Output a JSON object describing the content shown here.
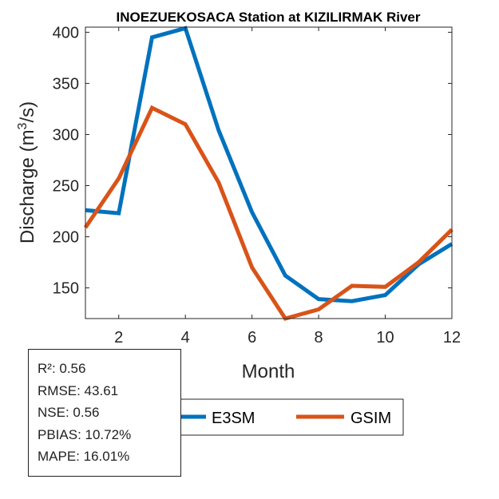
{
  "chart_data": {
    "type": "line",
    "title": "INOEZUEKOSACA  Station at  KIZILIRMAK  River",
    "xlabel": "Month",
    "ylabel_main": "Discharge (m",
    "ylabel_sup": "3",
    "ylabel_tail": "/s)",
    "xlim": [
      1,
      12
    ],
    "ylim": [
      120,
      405
    ],
    "xticks": [
      2,
      4,
      6,
      8,
      10,
      12
    ],
    "yticks": [
      150,
      200,
      250,
      300,
      350,
      400
    ],
    "grid": false,
    "legend_position": "bottom-outside",
    "x": [
      1,
      2,
      3,
      4,
      5,
      6,
      7,
      8,
      9,
      10,
      11,
      12
    ],
    "series": [
      {
        "name": "E3SM",
        "color": "#0072BD",
        "values": [
          226,
          223,
          395,
          404,
          304,
          224,
          162,
          139,
          137,
          143,
          173,
          193
        ]
      },
      {
        "name": "GSIM",
        "color": "#D95319",
        "values": [
          209,
          257,
          326,
          310,
          253,
          170,
          120,
          129,
          152,
          151,
          175,
          207
        ]
      }
    ]
  },
  "stats": [
    "R²: 0.56",
    "RMSE: 43.61",
    "NSE: 0.56",
    "PBIAS: 10.72%",
    "MAPE: 16.01%"
  ]
}
